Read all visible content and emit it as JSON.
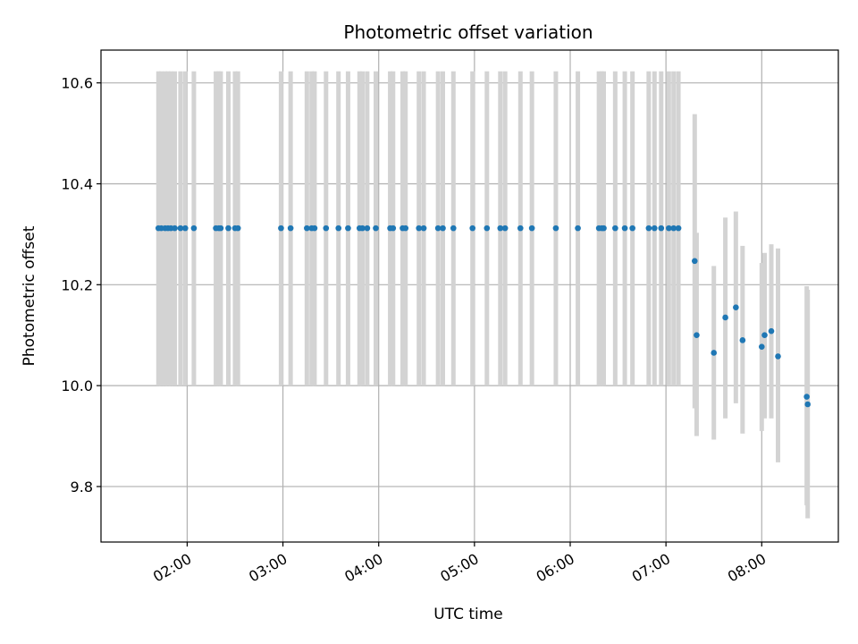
{
  "chart_data": {
    "type": "scatter",
    "title": "Photometric offset variation",
    "xlabel": "UTC time",
    "ylabel": "Photometric offset",
    "x_unit": "hours (UTC)",
    "xlim": [
      1.1,
      8.8
    ],
    "ylim": [
      9.69,
      10.665
    ],
    "xticks": [
      {
        "value": 2,
        "label": "02:00"
      },
      {
        "value": 3,
        "label": "03:00"
      },
      {
        "value": 4,
        "label": "04:00"
      },
      {
        "value": 5,
        "label": "05:00"
      },
      {
        "value": 6,
        "label": "06:00"
      },
      {
        "value": 7,
        "label": "07:00"
      },
      {
        "value": 8,
        "label": "08:00"
      }
    ],
    "yticks": [
      {
        "value": 9.8,
        "label": "9.8"
      },
      {
        "value": 10.0,
        "label": "10.0"
      },
      {
        "value": 10.2,
        "label": "10.2"
      },
      {
        "value": 10.4,
        "label": "10.4"
      },
      {
        "value": 10.6,
        "label": "10.6"
      }
    ],
    "grid": true,
    "colors": {
      "point": "#1f77b4",
      "errorbar": "#d3d3d3"
    },
    "series": [
      {
        "x": [
          1.7,
          1.73,
          1.77,
          1.8,
          1.83,
          1.87,
          1.93,
          1.98,
          2.07,
          2.3,
          2.33,
          2.35,
          2.43,
          2.5,
          2.53,
          2.98,
          3.08,
          3.25,
          3.3,
          3.33,
          3.45,
          3.58,
          3.68,
          3.8,
          3.83,
          3.88,
          3.97,
          4.12,
          4.15,
          4.25,
          4.28,
          4.42,
          4.47,
          4.62,
          4.67,
          4.78,
          4.98,
          5.13,
          5.27,
          5.32,
          5.48,
          5.6,
          5.85,
          6.08,
          6.3,
          6.33,
          6.35,
          6.47,
          6.57,
          6.65,
          6.82,
          6.88,
          6.95,
          7.03,
          7.08,
          7.13
        ],
        "y": [
          10.312,
          10.312,
          10.312,
          10.312,
          10.312,
          10.312,
          10.312,
          10.312,
          10.312,
          10.312,
          10.312,
          10.312,
          10.312,
          10.312,
          10.312,
          10.312,
          10.312,
          10.312,
          10.312,
          10.312,
          10.312,
          10.312,
          10.312,
          10.312,
          10.312,
          10.312,
          10.312,
          10.312,
          10.312,
          10.312,
          10.312,
          10.312,
          10.312,
          10.312,
          10.312,
          10.312,
          10.312,
          10.312,
          10.312,
          10.312,
          10.312,
          10.312,
          10.312,
          10.312,
          10.312,
          10.312,
          10.312,
          10.312,
          10.312,
          10.312,
          10.312,
          10.312,
          10.312,
          10.312,
          10.312,
          10.312
        ],
        "yerr_low": [
          10.0,
          10.0,
          10.0,
          10.0,
          10.0,
          10.0,
          10.0,
          10.0,
          10.0,
          10.0,
          10.0,
          10.0,
          10.0,
          10.0,
          10.0,
          10.0,
          10.0,
          10.0,
          10.0,
          10.0,
          10.0,
          10.0,
          10.0,
          10.0,
          10.0,
          10.0,
          10.0,
          10.0,
          10.0,
          10.0,
          10.0,
          10.0,
          10.0,
          10.0,
          10.0,
          10.0,
          10.0,
          10.0,
          10.0,
          10.0,
          10.0,
          10.0,
          10.0,
          10.0,
          10.0,
          10.0,
          10.0,
          10.0,
          10.0,
          10.0,
          10.0,
          10.0,
          10.0,
          10.0,
          10.0,
          10.0
        ],
        "yerr_high": [
          10.623,
          10.623,
          10.623,
          10.623,
          10.623,
          10.623,
          10.623,
          10.623,
          10.623,
          10.623,
          10.623,
          10.623,
          10.623,
          10.623,
          10.623,
          10.623,
          10.623,
          10.623,
          10.623,
          10.623,
          10.623,
          10.623,
          10.623,
          10.623,
          10.623,
          10.623,
          10.623,
          10.623,
          10.623,
          10.623,
          10.623,
          10.623,
          10.623,
          10.623,
          10.623,
          10.623,
          10.623,
          10.623,
          10.623,
          10.623,
          10.623,
          10.623,
          10.623,
          10.623,
          10.623,
          10.623,
          10.623,
          10.623,
          10.623,
          10.623,
          10.623,
          10.623,
          10.623,
          10.623,
          10.623,
          10.623
        ]
      },
      {
        "x": [
          7.3,
          7.32,
          7.5,
          7.62,
          7.73,
          7.8,
          8.0,
          8.03,
          8.1,
          8.17,
          8.47,
          8.48
        ],
        "y": [
          10.247,
          10.1,
          10.065,
          10.135,
          10.155,
          10.09,
          10.077,
          10.1,
          10.108,
          10.058,
          9.978,
          9.963
        ],
        "yerr_low": [
          9.955,
          9.9,
          9.893,
          9.935,
          9.965,
          9.905,
          9.91,
          9.935,
          9.935,
          9.848,
          9.763,
          9.737
        ],
        "yerr_high": [
          10.538,
          10.303,
          10.237,
          10.333,
          10.345,
          10.277,
          10.243,
          10.263,
          10.28,
          10.272,
          10.197,
          10.19
        ]
      }
    ]
  }
}
